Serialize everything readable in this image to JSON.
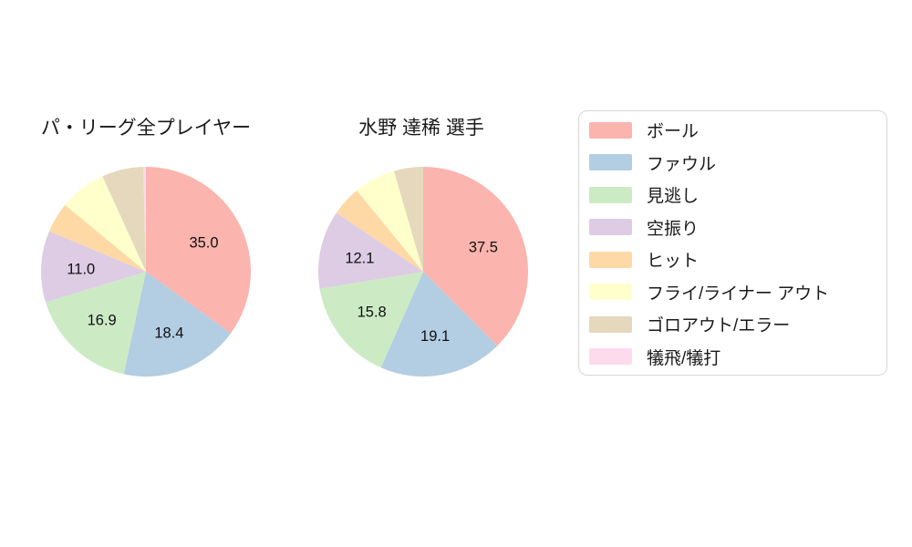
{
  "chart_data": [
    {
      "type": "pie",
      "title": "パ・リーグ全プレイヤー",
      "categories": [
        "ボール",
        "ファウル",
        "見逃し",
        "空振り",
        "ヒット",
        "フライ/ライナー アウト",
        "ゴロアウト/エラー",
        "犠飛/犠打"
      ],
      "values": [
        35.0,
        18.4,
        16.9,
        11.0,
        4.7,
        7.2,
        6.4,
        0.4
      ],
      "slice_labels": [
        "35.0",
        "18.4",
        "16.9",
        "11.0",
        "",
        "",
        "",
        ""
      ],
      "start_angle_deg": 0,
      "direction": "clockwise",
      "label_radius_frac": 0.62,
      "legend_position": "right"
    },
    {
      "type": "pie",
      "title": "水野 達稀 選手",
      "categories": [
        "ボール",
        "ファウル",
        "見逃し",
        "空振り",
        "ヒット",
        "フライ/ライナー アウト",
        "ゴロアウト/エラー",
        "犠飛/犠打"
      ],
      "values": [
        37.5,
        19.1,
        15.8,
        12.1,
        4.6,
        6.4,
        4.5,
        0.0
      ],
      "slice_labels": [
        "37.5",
        "19.1",
        "15.8",
        "12.1",
        "",
        "",
        "",
        ""
      ],
      "start_angle_deg": 0,
      "direction": "clockwise",
      "label_radius_frac": 0.62,
      "legend_position": "right"
    }
  ],
  "legend": {
    "items": [
      {
        "label": "ボール",
        "color": "#fbb4ae"
      },
      {
        "label": "ファウル",
        "color": "#b3cde3"
      },
      {
        "label": "見逃し",
        "color": "#ccebc5"
      },
      {
        "label": "空振り",
        "color": "#decbe4"
      },
      {
        "label": "ヒット",
        "color": "#fed9a6"
      },
      {
        "label": "フライ/ライナー アウト",
        "color": "#ffffcc"
      },
      {
        "label": "ゴロアウト/エラー",
        "color": "#e5d8bd"
      },
      {
        "label": "犠飛/犠打",
        "color": "#fddaec"
      }
    ]
  },
  "style": {
    "background": "#ffffff",
    "text_color": "#1a1a1a",
    "legend_border_color": "#d7d7d7"
  }
}
